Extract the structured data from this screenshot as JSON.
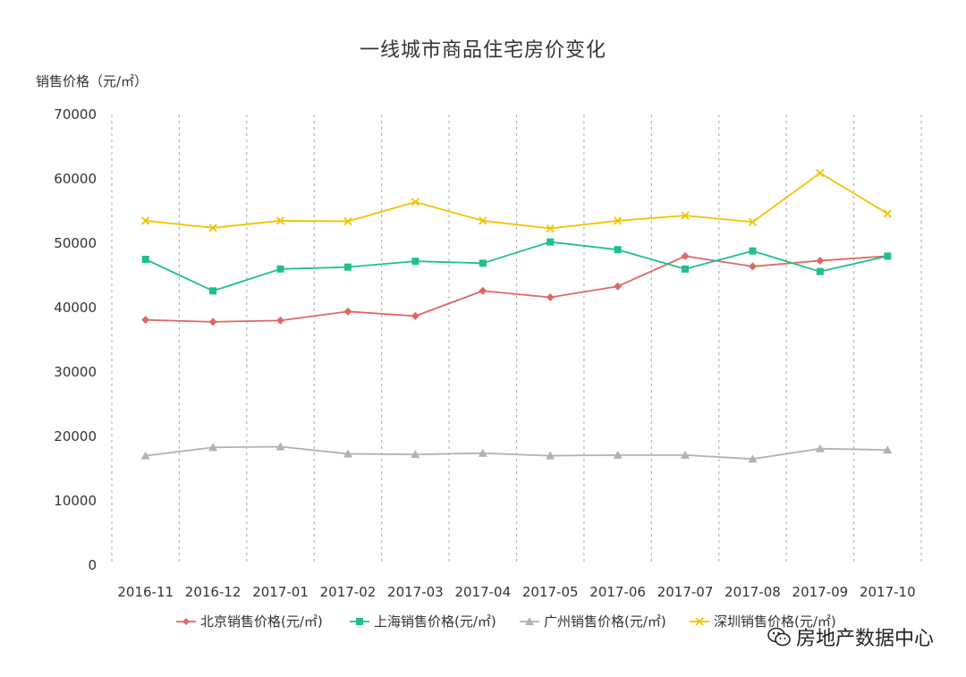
{
  "chart_data": {
    "type": "line",
    "title": "一线城市商品住宅房价变化",
    "ylabel": "销售价格（元/㎡）",
    "xlabel": "",
    "ylim": [
      0,
      70000
    ],
    "yticks": [
      0,
      10000,
      20000,
      30000,
      40000,
      50000,
      60000,
      70000
    ],
    "categories": [
      "2016-11",
      "2016-12",
      "2017-01",
      "2017-02",
      "2017-03",
      "2017-04",
      "2017-05",
      "2017-06",
      "2017-07",
      "2017-08",
      "2017-09",
      "2017-10"
    ],
    "series": [
      {
        "name": "北京销售价格(元/㎡)",
        "color": "#e06666",
        "marker": "diamond",
        "values": [
          38100,
          37800,
          38000,
          39400,
          38700,
          42600,
          41600,
          43300,
          48000,
          46400,
          47300,
          48000
        ]
      },
      {
        "name": "上海销售价格(元/㎡)",
        "color": "#1fbf8f",
        "marker": "square",
        "values": [
          47500,
          42600,
          46000,
          46300,
          47200,
          46900,
          50200,
          49000,
          46000,
          48800,
          45600,
          48000
        ]
      },
      {
        "name": "广州销售价格(元/㎡)",
        "color": "#b0b0b8",
        "marker": "triangle",
        "values": [
          17000,
          18300,
          18400,
          17300,
          17200,
          17400,
          17000,
          17100,
          17100,
          16500,
          18100,
          17900
        ]
      },
      {
        "name": "深圳销售价格(元/㎡)",
        "color": "#f2c200",
        "marker": "x",
        "values": [
          53500,
          52400,
          53500,
          53400,
          56400,
          53500,
          52300,
          53500,
          54300,
          53300,
          60900,
          54600
        ]
      }
    ],
    "grid": "vertical-dashed",
    "legend_position": "bottom"
  },
  "watermark": {
    "text": "房地产数据中心",
    "icon": "wechat-icon"
  }
}
